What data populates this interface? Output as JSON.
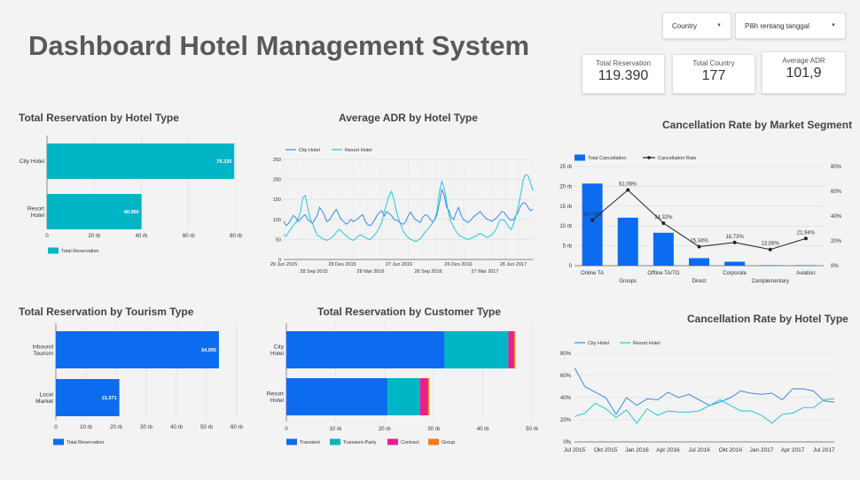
{
  "header": {
    "title": "Dashboard Hotel Management System",
    "country_filter": "Country",
    "date_filter": "Pilih rentang tanggal",
    "kpis": [
      {
        "label": "Total Reservation",
        "value": "119.390"
      },
      {
        "label": "Total Country",
        "value": "177"
      },
      {
        "label": "Average ADR",
        "value": "101,9"
      }
    ]
  },
  "colors": {
    "teal": "#00b6c6",
    "blue": "#0b6cf0",
    "pink": "#ea1e8c",
    "orange": "#f07d19",
    "line_blue": "#3b8be6",
    "line_teal": "#29c6d6"
  },
  "chart_data": [
    {
      "id": "hotel_type",
      "type": "bar",
      "orientation": "horizontal",
      "title": "Total Reservation by Hotel Type",
      "categories": [
        "City Hotel",
        "Resort\nHotel"
      ],
      "series": [
        {
          "name": "Total Reservation",
          "values": [
            79330,
            40060
          ]
        }
      ],
      "data_labels": [
        "79.330",
        "40.060"
      ],
      "xlim": [
        0,
        80000
      ],
      "ticks": [
        "0",
        "20 rb",
        "40 rb",
        "60 rb",
        "80 rb"
      ]
    },
    {
      "id": "adr_hotel",
      "type": "line",
      "title": "Average ADR by Hotel Type",
      "series": [
        {
          "name": "City Hotel",
          "values": [
            96,
            85,
            90,
            100,
            110,
            105,
            95,
            100,
            108,
            112,
            100,
            95,
            90,
            100,
            110,
            130,
            122,
            110,
            95,
            98,
            108,
            118,
            125,
            112,
            100,
            95,
            88,
            92,
            100,
            95,
            98,
            102,
            108,
            112,
            96,
            88,
            84,
            90,
            100,
            110,
            118,
            122,
            108,
            120,
            115,
            110,
            100,
            98,
            95,
            90,
            88,
            95,
            110,
            118,
            108,
            100,
            96,
            92,
            105,
            112,
            110,
            102,
            95,
            98,
            112,
            140,
            175,
            160,
            130,
            122,
            105,
            100,
            118,
            130,
            112,
            100,
            96,
            92,
            98,
            105,
            110,
            115,
            120,
            112,
            105,
            100,
            98,
            95,
            100,
            105,
            112,
            120,
            118,
            110,
            102,
            98,
            100,
            110,
            120,
            135,
            142,
            140,
            130,
            122,
            126
          ]
        },
        {
          "name": "Resort Hotel",
          "values": [
            62,
            58,
            68,
            76,
            85,
            92,
            100,
            120,
            155,
            160,
            130,
            102,
            90,
            75,
            60,
            58,
            52,
            50,
            48,
            50,
            55,
            60,
            68,
            75,
            72,
            65,
            60,
            55,
            50,
            48,
            52,
            58,
            62,
            58,
            55,
            52,
            50,
            55,
            62,
            70,
            80,
            95,
            120,
            140,
            160,
            170,
            150,
            122,
            100,
            85,
            70,
            60,
            55,
            50,
            48,
            45,
            48,
            52,
            60,
            68,
            75,
            82,
            90,
            100,
            120,
            170,
            195,
            178,
            145,
            110,
            92,
            80,
            70,
            62,
            58,
            55,
            52,
            50,
            52,
            55,
            58,
            62,
            65,
            62,
            58,
            55,
            58,
            62,
            70,
            80,
            95,
            100,
            98,
            90,
            80,
            75,
            90,
            110,
            135,
            165,
            200,
            212,
            210,
            192,
            172
          ]
        }
      ],
      "ylim": [
        0,
        250
      ],
      "yticks": [
        "0",
        "50",
        "100",
        "150",
        "200",
        "250"
      ],
      "xticks_top": [
        "29 Jun 2015",
        "28 Des 2015",
        "27 Jun 2016",
        "26 Des 2016",
        "26 Jun 2017"
      ],
      "xticks_bottom": [
        "28 Sep 2015",
        "28 Mar 2016",
        "26 Sep 2016",
        "27 Mar 2017"
      ]
    },
    {
      "id": "cancel_market",
      "type": "bar",
      "title": "Cancellation Rate by Market Segment",
      "categories": [
        "Online TA",
        "Groups",
        "Offline TA/TO",
        "Direct",
        "Corporate",
        "Complementary",
        "Aviation"
      ],
      "series": [
        {
          "name": "Total Cancellation",
          "values": [
            20.7,
            12.1,
            8.3,
            1.9,
            1.0,
            0.1,
            0.1
          ]
        },
        {
          "name": "Cancellation Rate",
          "values": [
            36.72,
            61.06,
            34.32,
            15.34,
            18.73,
            13.06,
            21.94
          ],
          "labels": [
            "36,72%",
            "61,06%",
            "34,32%",
            "15,34%",
            "18,73%",
            "13,06%",
            "21,94%"
          ]
        }
      ],
      "ylim": [
        0,
        25
      ],
      "yticks": [
        "0",
        "5 rb",
        "10 rb",
        "15 rb",
        "20 rb",
        "25 rb"
      ],
      "y2lim": [
        0,
        80
      ],
      "y2ticks": [
        "0%",
        "20%",
        "40%",
        "60%",
        "80%"
      ]
    },
    {
      "id": "tourism",
      "type": "bar",
      "orientation": "horizontal",
      "title": "Total Reservation by Tourism Type",
      "categories": [
        "Inbound\nTourism",
        "Local\nMarket"
      ],
      "series": [
        {
          "name": "Total Reservation",
          "values": [
            54095,
            21071
          ]
        }
      ],
      "data_labels": [
        "54.095",
        "21.071"
      ],
      "xlim": [
        0,
        60000
      ],
      "ticks": [
        "0",
        "10 rb",
        "20 rb",
        "30 rb",
        "40 rb",
        "50 rb",
        "60 rb"
      ]
    },
    {
      "id": "customer",
      "type": "bar",
      "orientation": "horizontal",
      "stacked": true,
      "title": "Total Reservation by Customer Type",
      "categories": [
        "City\nHotel",
        "Resort\nHotel"
      ],
      "series": [
        {
          "name": "Transient",
          "values": [
            32.2,
            20.6
          ]
        },
        {
          "name": "Transient-Party",
          "values": [
            13.0,
            6.6
          ]
        },
        {
          "name": "Contract",
          "values": [
            1.1,
            1.6
          ]
        },
        {
          "name": "Group",
          "values": [
            0.3,
            0.3
          ]
        }
      ],
      "xlim": [
        0,
        50
      ],
      "ticks": [
        "0",
        "10 rb",
        "20 rb",
        "30 rb",
        "40 rb",
        "50 rb"
      ]
    },
    {
      "id": "cancel_hotel",
      "type": "line",
      "title": "Cancellation Rate  by Hotel Type",
      "categories": [
        "Jul 2015",
        "Agu 2015",
        "Sep 2015",
        "Okt 2015",
        "Nov 2015",
        "Des 2015",
        "Jan 2016",
        "Feb 2016",
        "Mar 2016",
        "Apr 2016",
        "Mei 2016",
        "Jun 2016",
        "Jul 2016",
        "Agu 2016",
        "Sep 2016",
        "Okt 2016",
        "Nov 2016",
        "Des 2016",
        "Jan 2017",
        "Feb 2017",
        "Mar 2017",
        "Apr 2017",
        "Mei 2017",
        "Jun 2017",
        "Jul 2017",
        "Agu 2017"
      ],
      "series": [
        {
          "name": "City Hotel",
          "values": [
            67,
            50,
            45,
            40,
            25,
            40,
            33,
            39,
            38,
            45,
            40,
            43,
            38,
            33,
            36,
            40,
            46,
            44,
            43,
            44,
            38,
            48,
            48,
            46,
            37,
            36
          ]
        },
        {
          "name": "Resort Hotel",
          "values": [
            23,
            26,
            35,
            30,
            22,
            29,
            17,
            30,
            24,
            28,
            27,
            27,
            28,
            33,
            38,
            33,
            28,
            28,
            24,
            17,
            25,
            26,
            31,
            31,
            38,
            39
          ]
        }
      ],
      "ylim": [
        0,
        80
      ],
      "yticks": [
        "0%",
        "20%",
        "40%",
        "60%",
        "80%"
      ],
      "xticks": [
        "Jul 2015",
        "Okt 2015",
        "Jan 2016",
        "Apr 2016",
        "Jul 2016",
        "Okt 2016",
        "Jan 2017",
        "Apr 2017",
        "Jul 2017"
      ]
    }
  ]
}
